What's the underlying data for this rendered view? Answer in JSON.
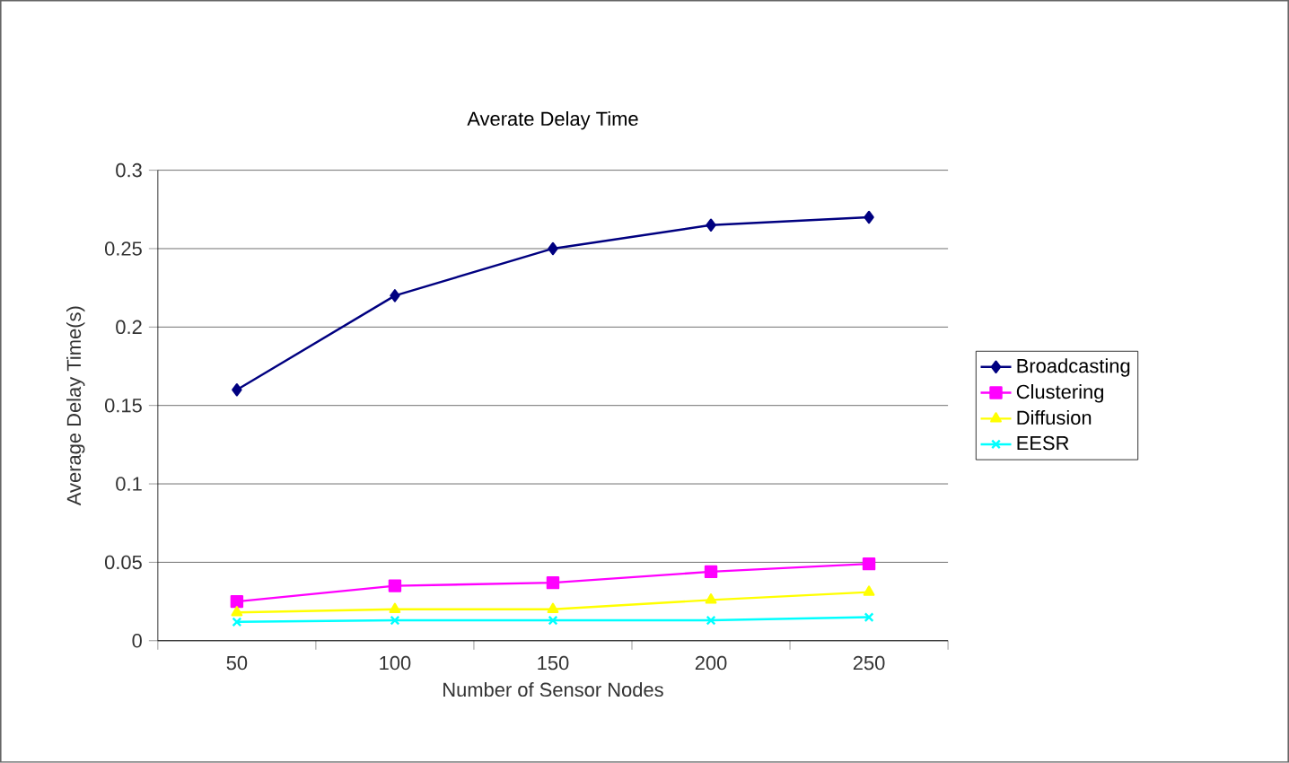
{
  "chart_data": {
    "type": "line",
    "title": "Averate Delay Time",
    "xlabel": "Number of Sensor Nodes",
    "ylabel": "Average Delay Time(s)",
    "categories": [
      "50",
      "100",
      "150",
      "200",
      "250"
    ],
    "series": [
      {
        "name": "Broadcasting",
        "color": "#000080",
        "marker": "diamond",
        "values": [
          0.16,
          0.22,
          0.25,
          0.265,
          0.27
        ]
      },
      {
        "name": "Clustering",
        "color": "#ff00ff",
        "marker": "square",
        "values": [
          0.025,
          0.035,
          0.037,
          0.044,
          0.049
        ]
      },
      {
        "name": "Diffusion",
        "color": "#ffff00",
        "marker": "triangle",
        "values": [
          0.018,
          0.02,
          0.02,
          0.026,
          0.031
        ]
      },
      {
        "name": "EESR",
        "color": "#00ffff",
        "marker": "cross",
        "values": [
          0.012,
          0.013,
          0.013,
          0.013,
          0.015
        ]
      }
    ],
    "ylim": [
      0,
      0.3
    ],
    "yticks": [
      0,
      0.05,
      0.1,
      0.15,
      0.2,
      0.25,
      0.3
    ],
    "grid": "y",
    "legend": "right"
  }
}
